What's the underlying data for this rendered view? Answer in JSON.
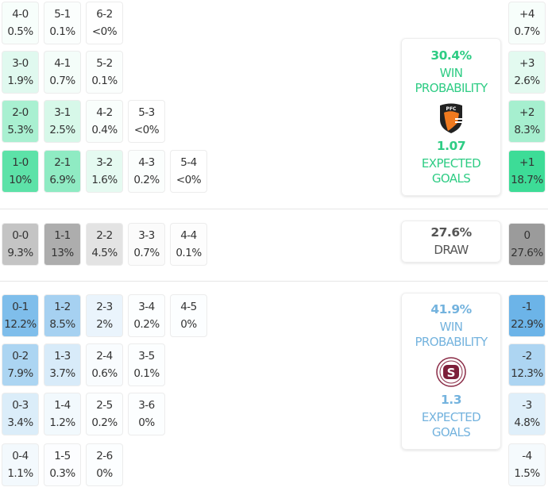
{
  "colors": {
    "home": "#3ddc97",
    "draw": "#9a9a9a",
    "away": "#6cb4e8",
    "home_text": "#2ecc84",
    "away_text": "#74b3de"
  },
  "home_rows": [
    [
      [
        "4-0",
        "0.5%"
      ],
      [
        "5-1",
        "0.1%"
      ],
      [
        "6-2",
        "<0%"
      ]
    ],
    [
      [
        "3-0",
        "1.9%"
      ],
      [
        "4-1",
        "0.7%"
      ],
      [
        "5-2",
        "0.1%"
      ]
    ],
    [
      [
        "2-0",
        "5.3%"
      ],
      [
        "3-1",
        "2.5%"
      ],
      [
        "4-2",
        "0.4%"
      ],
      [
        "5-3",
        "<0%"
      ]
    ],
    [
      [
        "1-0",
        "10%"
      ],
      [
        "2-1",
        "6.9%"
      ],
      [
        "3-2",
        "1.6%"
      ],
      [
        "4-3",
        "0.2%"
      ],
      [
        "5-4",
        "<0%"
      ]
    ]
  ],
  "draw_rows": [
    [
      [
        "0-0",
        "9.3%"
      ],
      [
        "1-1",
        "13%"
      ],
      [
        "2-2",
        "4.5%"
      ],
      [
        "3-3",
        "0.7%"
      ],
      [
        "4-4",
        "0.1%"
      ]
    ]
  ],
  "away_rows": [
    [
      [
        "0-1",
        "12.2%"
      ],
      [
        "1-2",
        "8.5%"
      ],
      [
        "2-3",
        "2%"
      ],
      [
        "3-4",
        "0.2%"
      ],
      [
        "4-5",
        "0%"
      ]
    ],
    [
      [
        "0-2",
        "7.9%"
      ],
      [
        "1-3",
        "3.7%"
      ],
      [
        "2-4",
        "0.6%"
      ],
      [
        "3-5",
        "0.1%"
      ]
    ],
    [
      [
        "0-3",
        "3.4%"
      ],
      [
        "1-4",
        "1.2%"
      ],
      [
        "2-5",
        "0.2%"
      ],
      [
        "3-6",
        "0%"
      ]
    ],
    [
      [
        "0-4",
        "1.1%"
      ],
      [
        "1-5",
        "0.3%"
      ],
      [
        "2-6",
        "0%"
      ]
    ]
  ],
  "margins_home": [
    [
      "+4",
      "0.7%"
    ],
    [
      "+3",
      "2.6%"
    ],
    [
      "+2",
      "8.3%"
    ],
    [
      "+1",
      "18.7%"
    ]
  ],
  "margins_draw": [
    [
      "0",
      "27.6%"
    ]
  ],
  "margins_away": [
    [
      "-1",
      "22.9%"
    ],
    [
      "-2",
      "12.3%"
    ],
    [
      "-3",
      "4.8%"
    ],
    [
      "-4",
      "1.5%"
    ]
  ],
  "home": {
    "win_pct": "30.4%",
    "win_label_1": "WIN",
    "win_label_2": "PROBABILITY",
    "xg": "1.07",
    "xg_label_1": "EXPECTED",
    "xg_label_2": "GOALS",
    "logo_text": "PFC"
  },
  "draw": {
    "pct": "27.6%",
    "label": "DRAW"
  },
  "away": {
    "win_pct": "41.9%",
    "win_label_1": "WIN",
    "win_label_2": "PROBABILITY",
    "xg": "1.3",
    "xg_label_1": "EXPECTED",
    "xg_label_2": "GOALS",
    "logo_text": "S"
  }
}
